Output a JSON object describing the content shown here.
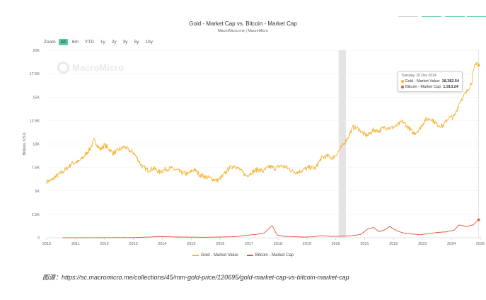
{
  "header": {
    "zoom_label": "Zoom",
    "zoom_options": [
      "All",
      "6m",
      "YTD",
      "1y",
      "2y",
      "3y",
      "5y",
      "10y"
    ],
    "zoom_active": "All"
  },
  "watermark": "MacroMicro",
  "tooltip": {
    "date": "Tuesday, 10 Dec 2024",
    "gold_label": "Gold - Market Value:",
    "gold_value": "18,382.54",
    "btc_label": "Bitcoin - Market Cap:",
    "btc_value": "1,913.24"
  },
  "source": "图源：https://sc.macromicro.me/collections/45/mm-gold-price/120695/gold-market-cap-vs-bitcoin-market-cap",
  "colors": {
    "gold": "#f5b335",
    "bitcoin": "#e0533a",
    "highlight_band": "#e4e4e4",
    "zoom_active": "#59c9a5",
    "top_lines": [
      "#cccccc",
      "#59c9a5",
      "#59c9a5",
      "#59c9a5"
    ]
  },
  "chart_data": {
    "type": "line",
    "title": "Gold - Market Cap vs. Bitcoin - Market Cap",
    "subtitle": "MacroMicro.me | MacroMicro",
    "ylabel": "Billions, USD",
    "xlabel": "",
    "ylim": [
      0,
      20000
    ],
    "xlim": [
      2010.0,
      2025.05
    ],
    "y_ticks": [
      0,
      2500,
      5000,
      7500,
      10000,
      12500,
      15000,
      17500,
      20000
    ],
    "y_tick_labels": [
      "0",
      "2.5K",
      "5K",
      "7.5K",
      "10K",
      "12.5K",
      "15K",
      "17.5K",
      "20K"
    ],
    "x_tick_labels": [
      "2010",
      "2011",
      "2012",
      "2013",
      "2014",
      "2015",
      "2016",
      "2017",
      "2018",
      "2019",
      "2020",
      "2021",
      "2022",
      "2023",
      "2024",
      "2025"
    ],
    "highlight_band": [
      2020.1,
      2020.35
    ],
    "crosshair_x": 2024.94,
    "grid": true,
    "legend_position": "bottom",
    "series": [
      {
        "name": "Gold - Market Value",
        "x": [
          2010.0,
          2010.15,
          2010.3,
          2010.5,
          2010.7,
          2010.9,
          2011.1,
          2011.3,
          2011.5,
          2011.65,
          2011.85,
          2012.0,
          2012.15,
          2012.3,
          2012.5,
          2012.7,
          2012.85,
          2013.0,
          2013.15,
          2013.3,
          2013.5,
          2013.7,
          2013.9,
          2014.1,
          2014.3,
          2014.5,
          2014.7,
          2014.9,
          2015.1,
          2015.3,
          2015.5,
          2015.7,
          2015.9,
          2016.1,
          2016.3,
          2016.5,
          2016.7,
          2016.9,
          2017.1,
          2017.3,
          2017.5,
          2017.7,
          2017.9,
          2018.1,
          2018.3,
          2018.5,
          2018.7,
          2018.9,
          2019.1,
          2019.3,
          2019.5,
          2019.7,
          2019.9,
          2020.1,
          2020.25,
          2020.4,
          2020.6,
          2020.8,
          2020.95,
          2021.1,
          2021.3,
          2021.5,
          2021.7,
          2021.9,
          2022.1,
          2022.3,
          2022.5,
          2022.7,
          2022.9,
          2023.1,
          2023.3,
          2023.5,
          2023.7,
          2023.9,
          2024.1,
          2024.3,
          2024.5,
          2024.7,
          2024.8,
          2024.88,
          2024.94,
          2025.0
        ],
        "values": [
          6000,
          6100,
          6500,
          6900,
          7400,
          8000,
          8100,
          8700,
          9500,
          10400,
          9400,
          9900,
          9500,
          9000,
          9400,
          9700,
          9300,
          9100,
          8400,
          7600,
          7200,
          7400,
          7000,
          7300,
          7400,
          7200,
          6900,
          6800,
          7300,
          6700,
          6500,
          6300,
          6100,
          6600,
          7400,
          7700,
          7200,
          6600,
          7000,
          7300,
          7100,
          7600,
          7400,
          7700,
          7500,
          7100,
          7000,
          7300,
          7500,
          7400,
          8500,
          8700,
          8500,
          9200,
          9900,
          10600,
          11800,
          11600,
          11100,
          10900,
          11500,
          11400,
          11800,
          11700,
          11900,
          12400,
          11800,
          11100,
          11600,
          12600,
          12700,
          12100,
          11900,
          12800,
          12900,
          14600,
          15400,
          16600,
          18200,
          18800,
          18382.54,
          18500
        ]
      },
      {
        "name": "Bitcoin - Market Cap",
        "x": [
          2010.55,
          2011.0,
          2012.0,
          2013.0,
          2013.9,
          2014.5,
          2015.5,
          2016.5,
          2017.5,
          2017.8,
          2017.97,
          2018.2,
          2018.5,
          2018.9,
          2019.2,
          2019.5,
          2019.9,
          2020.2,
          2020.5,
          2020.85,
          2021.1,
          2021.3,
          2021.5,
          2021.7,
          2021.87,
          2022.1,
          2022.4,
          2022.6,
          2022.9,
          2023.2,
          2023.5,
          2023.8,
          2024.1,
          2024.25,
          2024.5,
          2024.75,
          2024.94,
          2025.0
        ],
        "values": [
          0,
          0,
          10,
          20,
          120,
          80,
          50,
          110,
          450,
          1300,
          300,
          150,
          120,
          70,
          100,
          220,
          140,
          170,
          200,
          340,
          900,
          1100,
          650,
          850,
          1200,
          750,
          450,
          420,
          320,
          440,
          560,
          620,
          820,
          1350,
          1200,
          1350,
          1913.24,
          1850
        ]
      }
    ]
  }
}
